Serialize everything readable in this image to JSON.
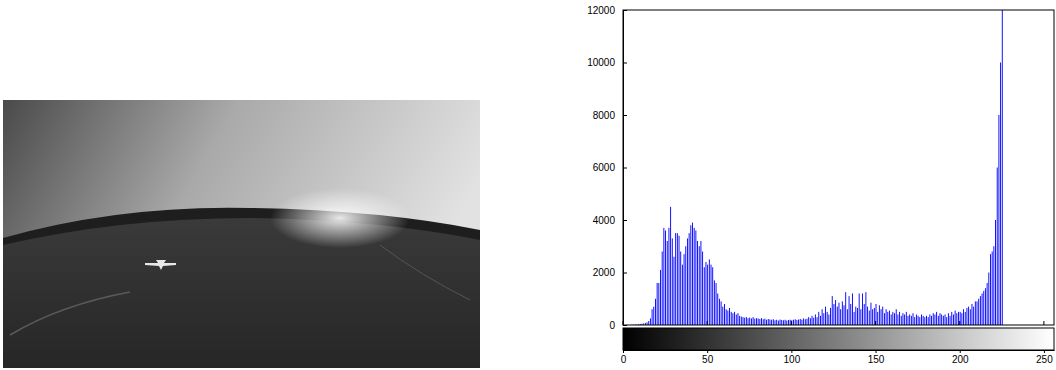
{
  "chart_data": {
    "type": "histogram",
    "color": "#0000ff",
    "bins": [
      0,
      1,
      2,
      3,
      4,
      5,
      6,
      7,
      8,
      9,
      10,
      11,
      12,
      13,
      14,
      15,
      16,
      17,
      18,
      19,
      20,
      21,
      22,
      23,
      24,
      25,
      26,
      27,
      28,
      29,
      30,
      31,
      32,
      33,
      34,
      35,
      36,
      37,
      38,
      39,
      40,
      41,
      42,
      43,
      44,
      45,
      46,
      47,
      48,
      49,
      50,
      51,
      52,
      53,
      54,
      55,
      56,
      57,
      58,
      59,
      60,
      61,
      62,
      63,
      64,
      65,
      66,
      67,
      68,
      69,
      70,
      71,
      72,
      73,
      74,
      75,
      76,
      77,
      78,
      79,
      80,
      81,
      82,
      83,
      84,
      85,
      86,
      87,
      88,
      89,
      90,
      91,
      92,
      93,
      94,
      95,
      96,
      97,
      98,
      99,
      100,
      101,
      102,
      103,
      104,
      105,
      106,
      107,
      108,
      109,
      110,
      111,
      112,
      113,
      114,
      115,
      116,
      117,
      118,
      119,
      120,
      121,
      122,
      123,
      124,
      125,
      126,
      127,
      128,
      129,
      130,
      131,
      132,
      133,
      134,
      135,
      136,
      137,
      138,
      139,
      140,
      141,
      142,
      143,
      144,
      145,
      146,
      147,
      148,
      149,
      150,
      151,
      152,
      153,
      154,
      155,
      156,
      157,
      158,
      159,
      160,
      161,
      162,
      163,
      164,
      165,
      166,
      167,
      168,
      169,
      170,
      171,
      172,
      173,
      174,
      175,
      176,
      177,
      178,
      179,
      180,
      181,
      182,
      183,
      184,
      185,
      186,
      187,
      188,
      189,
      190,
      191,
      192,
      193,
      194,
      195,
      196,
      197,
      198,
      199,
      200,
      201,
      202,
      203,
      204,
      205,
      206,
      207,
      208,
      209,
      210,
      211,
      212,
      213,
      214,
      215,
      216,
      217,
      218,
      219,
      220,
      221,
      222,
      223,
      224,
      225,
      226,
      227,
      228,
      229,
      230,
      231,
      232,
      233,
      234,
      235,
      236,
      237,
      238,
      239,
      240,
      241,
      242,
      243,
      244,
      245,
      246,
      247,
      248,
      249,
      250,
      251,
      252,
      253,
      254,
      255,
      256
    ],
    "counts": [
      0,
      0,
      0,
      0,
      0,
      10,
      10,
      20,
      20,
      30,
      40,
      50,
      60,
      80,
      100,
      150,
      250,
      600,
      700,
      1000,
      1600,
      1600,
      2100,
      2800,
      3700,
      3600,
      3200,
      3700,
      4500,
      3300,
      2600,
      3500,
      3500,
      3400,
      2800,
      2300,
      2700,
      3000,
      3300,
      3500,
      3800,
      3900,
      3700,
      3600,
      3200,
      3000,
      3200,
      2800,
      2200,
      2400,
      2300,
      2500,
      2300,
      2200,
      1700,
      1600,
      1200,
      1000,
      900,
      700,
      800,
      600,
      550,
      650,
      500,
      450,
      500,
      400,
      450,
      350,
      320,
      300,
      280,
      300,
      260,
      280,
      250,
      300,
      240,
      260,
      250,
      230,
      260,
      220,
      240,
      200,
      230,
      210,
      200,
      220,
      180,
      200,
      170,
      210,
      190,
      180,
      200,
      170,
      190,
      200,
      180,
      200,
      220,
      190,
      210,
      230,
      200,
      250,
      220,
      240,
      300,
      260,
      350,
      280,
      400,
      300,
      500,
      350,
      600,
      450,
      700,
      500,
      400,
      650,
      1100,
      800,
      950,
      700,
      850,
      600,
      900,
      750,
      1250,
      600,
      1100,
      800,
      1200,
      500,
      700,
      650,
      1200,
      600,
      1200,
      800,
      1250,
      700,
      550,
      850,
      600,
      650,
      800,
      500,
      750,
      600,
      700,
      450,
      600,
      500,
      550,
      400,
      500,
      450,
      600,
      400,
      500,
      350,
      450,
      400,
      500,
      350,
      400,
      350,
      450,
      300,
      400,
      350,
      300,
      400,
      350,
      300,
      350,
      300,
      400,
      350,
      450,
      400,
      500,
      350,
      450,
      400,
      350,
      400,
      300,
      450,
      350,
      500,
      400,
      550,
      450,
      500,
      500,
      450,
      600,
      500,
      650,
      700,
      600,
      800,
      700,
      900,
      900,
      1000,
      1100,
      1200,
      1300,
      1400,
      1600,
      2000,
      2700,
      2800,
      3000,
      4000,
      6000,
      8000,
      10000,
      12000,
      0,
      0,
      0,
      0,
      0,
      0,
      0,
      0,
      0,
      0,
      0,
      0,
      0,
      0,
      0,
      0,
      0,
      0,
      0,
      0,
      0,
      0,
      0,
      0,
      0,
      0,
      0,
      0,
      0,
      0
    ],
    "xlim": [
      0,
      256
    ],
    "ylim": [
      0,
      12000
    ],
    "xticks": [
      0,
      50,
      100,
      150,
      200,
      250
    ],
    "yticks": [
      0,
      2000,
      4000,
      6000,
      8000,
      10000,
      12000
    ]
  }
}
